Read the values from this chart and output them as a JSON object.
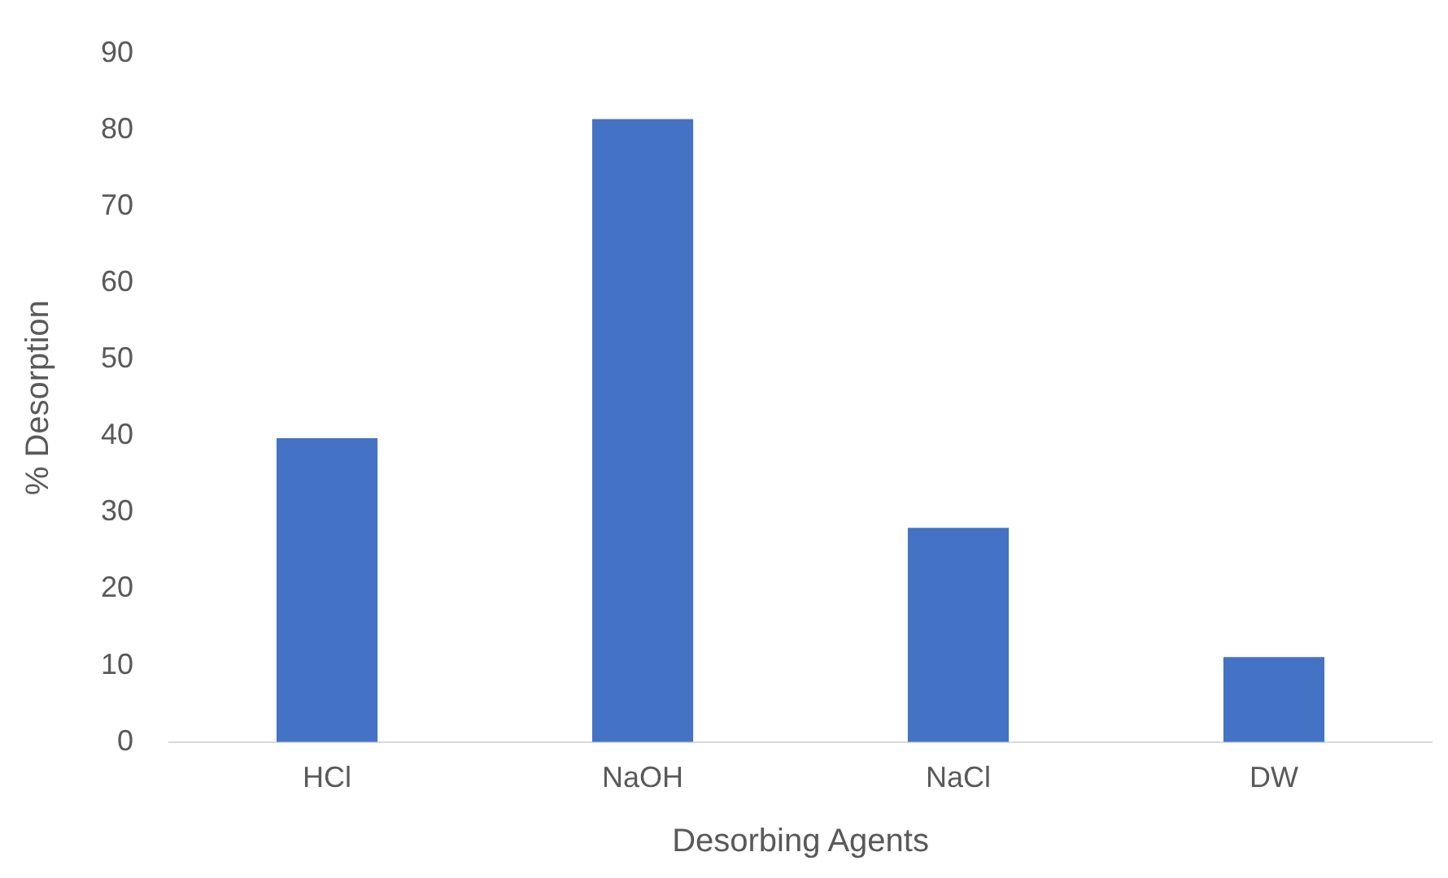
{
  "chart_data": {
    "type": "bar",
    "xlabel": "Desorbing Agents",
    "ylabel": "% Desorption",
    "categories": [
      "HCl",
      "NaOH",
      "NaCl",
      "DW"
    ],
    "values": [
      39.7,
      81.4,
      28.0,
      11.1
    ],
    "color": "#4472c4",
    "ylim": [
      0,
      90
    ],
    "yticks": [
      0,
      10,
      20,
      30,
      40,
      50,
      60,
      70,
      80,
      90
    ],
    "grid": false,
    "legend": false
  }
}
